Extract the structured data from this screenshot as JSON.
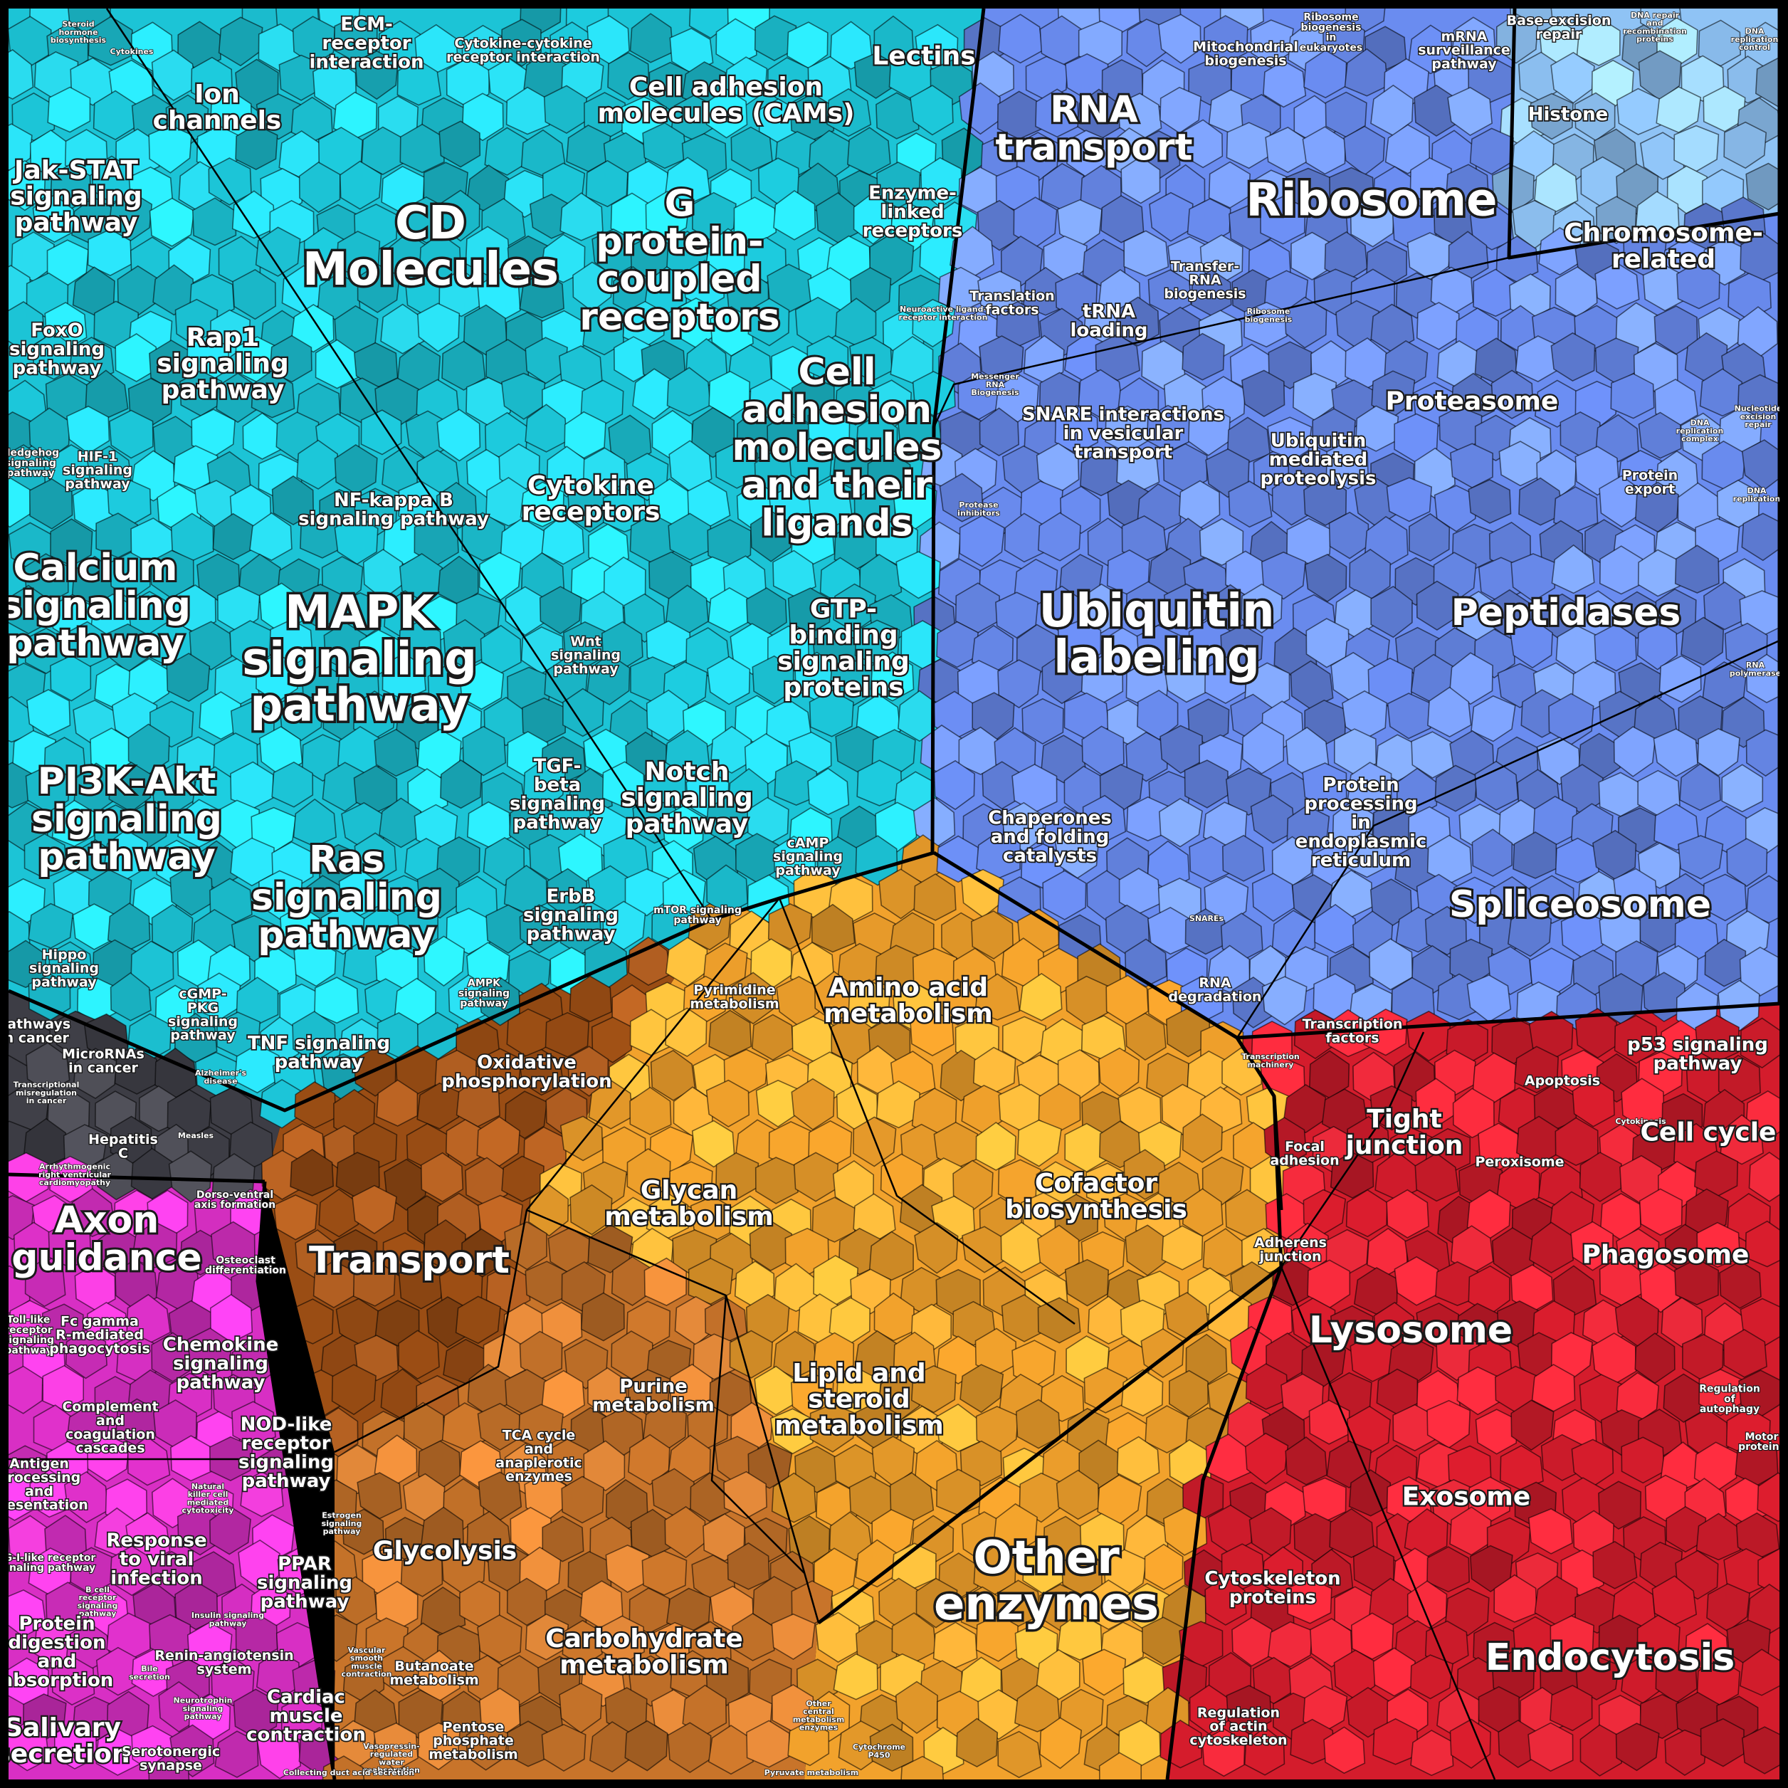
{
  "diagram": {
    "groups": [
      {
        "id": "signaling",
        "color": "#1cc4d6"
      },
      {
        "id": "genetic",
        "color": "#6a8cf0"
      },
      {
        "id": "dna",
        "color": "#8fc3f5"
      },
      {
        "id": "metabolism",
        "color": "#f2a22c"
      },
      {
        "id": "transport",
        "color": "#9a4d14"
      },
      {
        "id": "carb",
        "color": "#c8742a"
      },
      {
        "id": "cellular",
        "color": "#d41c2c"
      },
      {
        "id": "organismal",
        "color": "#d82fc4"
      },
      {
        "id": "disease",
        "color": "#3d3d45"
      }
    ],
    "labels": {
      "steroid_hormone": "Steroid hormone biosynthesis",
      "cytokines": "Cytokines",
      "ecm": "ECM-receptor interaction",
      "cytokine_cytokine": "Cytokine-cytokine receptor interaction",
      "lectins": "Lectins",
      "ion_channels": "Ion channels",
      "cams": "Cell adhesion molecules (CAMs)",
      "jak_stat": "Jak-STAT signaling pathway",
      "cd_molecules": "CD Molecules",
      "g_protein": "G protein-coupled receptors",
      "enzyme_linked": "Enzyme-linked receptors",
      "neuroactive": "Neuroactive ligand-receptor interaction",
      "foxo": "FoxO signaling pathway",
      "rap1": "Rap1 signaling pathway",
      "hedgehog": "Hedgehog signaling pathway",
      "hif1": "HIF-1 signaling pathway",
      "nfkb": "NF-kappa B signaling pathway",
      "cytokine_receptors": "Cytokine receptors",
      "cell_adhesion_ligands": "Cell adhesion molecules and their ligands",
      "calcium": "Calcium signaling pathway",
      "mapk": "MAPK signaling pathway",
      "wnt": "Wnt signaling pathway",
      "gtp": "GTP-binding signaling proteins",
      "pi3k": "PI3K-Akt signaling pathway",
      "tgf": "TGF-beta signaling pathway",
      "notch": "Notch signaling pathway",
      "ras": "Ras signaling pathway",
      "camp": "cAMP signaling pathway",
      "erbb": "ErbB signaling pathway",
      "mtor": "mTOR signaling pathway",
      "hippo": "Hippo signaling pathway",
      "cgmp": "cGMP-PKG signaling pathway",
      "ampk": "AMPK signaling pathway",
      "tnf": "TNF signaling pathway",
      "pathways_cancer": "Pathways in cancer",
      "micrornas": "MicroRNAs in cancer",
      "transcriptional_misreg": "Transcriptional misregulation in cancer",
      "alzheimers": "Alzheimer's disease",
      "hepatitis_c": "Hepatitis C",
      "arrhythmogenic": "Arrhythmogenic right ventricular cardiomyopathy (ARVC)",
      "measles": "Measles",
      "rna_transport": "RNA transport",
      "mitochondrial": "Mitochondrial biogenesis",
      "ribosome_biogenesis": "Ribosome biogenesis in eukaryotes",
      "mrna_surveillance": "mRNA surveillance pathway",
      "ribosome": "Ribosome",
      "translation_factors": "Translation factors",
      "trna_loading": "tRNA loading",
      "transfer_rna": "Transfer RNA biogenesis",
      "ribosome_small": "Ribosome biogenesis",
      "messenger_rna": "Messenger RNA Biogenesis",
      "base_excision": "Base excision repair",
      "dna_repair": "DNA repair and recombination proteins",
      "dna_replication_ctrl": "DNA replication control",
      "histone": "Histone",
      "chromosome": "Chromosome-related",
      "snare": "SNARE interactions in vesicular transport",
      "ubiquitin_mediated": "Ubiquitin mediated proteolysis",
      "proteasome": "Proteasome",
      "nucleotide_excision": "Nucleotide excision repair",
      "dna_rep_complex": "DNA replication complex",
      "protein_export": "Protein export",
      "dna_replication": "DNA replication",
      "protease_inhibitors": "Protease inhibitors",
      "ubiquitin_labeling": "Ubiquitin labeling",
      "peptidases": "Peptidases",
      "rna_polymerase": "RNA polymerase",
      "chaperones": "Chaperones and folding catalysts",
      "protein_processing": "Protein processing in endoplasmic reticulum",
      "spliceosome": "Spliceosome",
      "snares": "SNAREs",
      "rna_degradation": "RNA degradation",
      "transcription_factors": "Transcription factors",
      "transcription_machinery": "Transcription machinery",
      "pyrimidine": "Pyrimidine metabolism",
      "amino_acid": "Amino acid metabolism",
      "oxidative": "Oxidative phosphorylation",
      "glycan": "Glycan metabolism",
      "cofactor": "Cofactor biosynthesis",
      "transport": "Transport",
      "purine": "Purine metabolism",
      "lipid": "Lipid and steroid metabolism",
      "tca": "TCA cycle and anaplerotic enzymes",
      "glycolysis": "Glycolysis",
      "other_enzymes": "Other enzymes",
      "butanoate": "Butanoate metabolism",
      "carbohydrate": "Carbohydrate metabolism",
      "pentose": "Pentose phosphate metabolism",
      "other_central": "Other central metabolism enzymes",
      "pyruvate": "Pyruvate metabolism",
      "cytochrome": "Cytochrome P450",
      "axon": "Axon guidance",
      "dorso_ventral": "Dorso-ventral axis formation",
      "osteoclast": "Osteoclast differentiation",
      "toll_like": "Toll-like receptor signaling pathway",
      "fc_gamma": "Fc gamma R-mediated phagocytosis",
      "chemokine": "Chemokine signaling pathway",
      "complement": "Complement and coagulation cascades",
      "nod_like": "NOD-like receptor signaling pathway",
      "antigen": "Antigen processing and presentation",
      "natural_killer": "Natural killer cell mediated cytotoxicity",
      "rig_i": "RIG-I-like receptor signaling pathway",
      "viral": "Response to viral infection",
      "ppar": "PPAR signaling pathway",
      "estrogen": "Estrogen signaling pathway",
      "b_cell": "B cell receptor signaling pathway",
      "insulin": "Insulin signaling pathway",
      "protein_digestion": "Protein digestion and absorption",
      "renin": "Renin-angiotensin system",
      "bile": "Bile secretion",
      "vascular": "Vascular smooth muscle contraction",
      "neurotrophin": "Neurotrophin signaling pathway",
      "cardiac": "Cardiac muscle contraction",
      "salivary": "Salivary secretion",
      "serotonergic": "Serotonergic synapse",
      "vasopressin": "Vasopressin-regulated water reabsorption",
      "collecting_duct": "Collecting duct acid secretion",
      "p53": "p53 signaling pathway",
      "apoptosis": "Apoptosis",
      "cytokinesis": "Cytokinesis",
      "cell_cycle": "Cell cycle",
      "focal": "Focal adhesion",
      "tight": "Tight junction",
      "peroxisome": "Peroxisome",
      "phagosome": "Phagosome",
      "adherens": "Adherens junction",
      "lysosome": "Lysosome",
      "autophagy": "Regulation of autophagy",
      "motor": "Motor proteins",
      "exosome": "Exosome",
      "cytoskeleton": "Cytoskeleton proteins",
      "endocytosis": "Endocytosis",
      "actin": "Regulation of actin cytoskeleton"
    }
  }
}
